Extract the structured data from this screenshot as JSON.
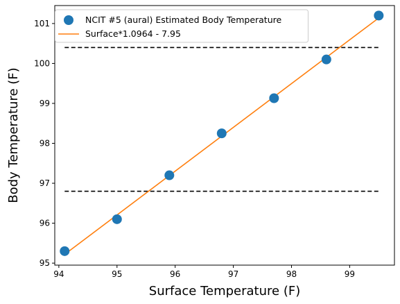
{
  "chart_data": {
    "type": "scatter",
    "xlabel": "Surface Temperature (F)",
    "ylabel": "Body Temperature (F)",
    "xlim": [
      93.93,
      99.77
    ],
    "ylim": [
      94.95,
      101.45
    ],
    "x_ticks": [
      94,
      95,
      96,
      97,
      98,
      99
    ],
    "y_ticks": [
      95,
      96,
      97,
      98,
      99,
      100,
      101
    ],
    "grid": false,
    "legend_position": "top-left",
    "series": [
      {
        "name": "NCIT #5 (aural) Estimated Body Temperature",
        "kind": "scatter",
        "color": "#1f77b4",
        "points": [
          {
            "x": 94.1,
            "y": 95.3
          },
          {
            "x": 95.0,
            "y": 96.1
          },
          {
            "x": 95.9,
            "y": 97.2
          },
          {
            "x": 96.8,
            "y": 98.25
          },
          {
            "x": 97.7,
            "y": 99.13
          },
          {
            "x": 98.6,
            "y": 100.1
          },
          {
            "x": 99.5,
            "y": 101.2
          }
        ]
      },
      {
        "name": "Surface*1.0964 - 7.95",
        "kind": "line",
        "color": "#ff7f0e",
        "points": [
          {
            "x": 94.1,
            "y": 95.22
          },
          {
            "x": 99.5,
            "y": 101.14
          }
        ]
      }
    ],
    "reference_lines": [
      {
        "y": 100.4,
        "x_range": [
          94.1,
          99.5
        ],
        "style": "dashed",
        "color": "#000000"
      },
      {
        "y": 96.8,
        "x_range": [
          94.1,
          99.5
        ],
        "style": "dashed",
        "color": "#000000"
      }
    ]
  }
}
